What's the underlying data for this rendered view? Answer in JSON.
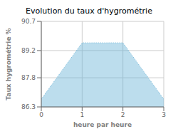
{
  "chart_data": {
    "type": "area",
    "title": "Evolution du taux d'hygrométrie",
    "xlabel": "heure par heure",
    "ylabel": "Taux hygrométrie %",
    "x": [
      0,
      1,
      2,
      3
    ],
    "values": [
      86.7,
      89.6,
      89.6,
      86.7
    ],
    "color": "#6ab4d8",
    "line_style": "dotted",
    "xlim": [
      0,
      3
    ],
    "ylim": [
      86.3,
      90.7
    ],
    "xticks": [
      0,
      1,
      2,
      3
    ],
    "yticks": [
      86.3,
      87.8,
      89.2,
      90.7
    ],
    "grid": true
  }
}
